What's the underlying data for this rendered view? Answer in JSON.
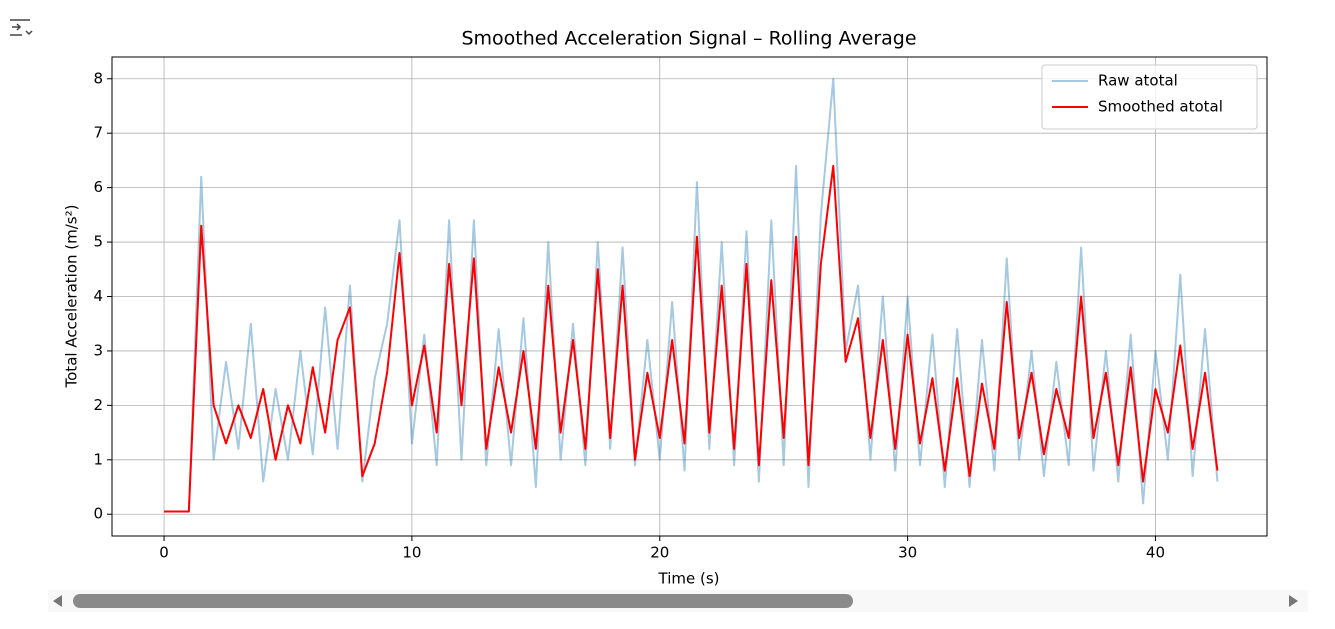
{
  "chart_data": {
    "type": "line",
    "title": "Smoothed Acceleration Signal – Rolling Average",
    "x_label": "Time (s)",
    "y_label": "Total Acceleration (m/s²)",
    "x": [
      0,
      0.5,
      1,
      1.5,
      2,
      2.5,
      3,
      3.5,
      4,
      4.5,
      5,
      5.5,
      6,
      6.5,
      7,
      7.5,
      8,
      8.5,
      9,
      9.5,
      10,
      10.5,
      11,
      11.5,
      12,
      12.5,
      13,
      13.5,
      14,
      14.5,
      15,
      15.5,
      16,
      16.5,
      17,
      17.5,
      18,
      18.5,
      19,
      19.5,
      20,
      20.5,
      21,
      21.5,
      22,
      22.5,
      23,
      23.5,
      24,
      24.5,
      25,
      25.5,
      26,
      26.5,
      27,
      27.5,
      28,
      28.5,
      29,
      29.5,
      30,
      30.5,
      31,
      31.5,
      32,
      32.5,
      33,
      33.5,
      34,
      34.5,
      35,
      35.5,
      36,
      36.5,
      37,
      37.5,
      38,
      38.5,
      39,
      39.5,
      40,
      40.5,
      41,
      41.5,
      42,
      42.5
    ],
    "series": [
      {
        "name": "Raw atotal",
        "color": "#1f77b4",
        "alpha": 0.4,
        "values": [
          0.05,
          0.05,
          0.05,
          6.2,
          1.0,
          2.8,
          1.2,
          3.5,
          0.6,
          2.3,
          1.0,
          3.0,
          1.1,
          3.8,
          1.2,
          4.2,
          0.6,
          2.5,
          3.5,
          5.4,
          1.3,
          3.3,
          0.9,
          5.4,
          1.0,
          5.4,
          0.9,
          3.4,
          0.9,
          3.6,
          0.5,
          5.0,
          1.0,
          3.5,
          0.9,
          5.0,
          1.2,
          4.9,
          0.9,
          3.2,
          1.0,
          3.9,
          0.8,
          6.1,
          1.2,
          5.0,
          0.9,
          5.2,
          0.6,
          5.4,
          0.9,
          6.4,
          0.5,
          5.5,
          8.0,
          3.0,
          4.2,
          1.0,
          4.0,
          0.8,
          4.0,
          0.9,
          3.3,
          0.5,
          3.4,
          0.5,
          3.2,
          0.8,
          4.7,
          1.0,
          3.0,
          0.7,
          2.8,
          0.9,
          4.9,
          0.8,
          3.0,
          0.6,
          3.3,
          0.2,
          3.0,
          1.0,
          4.4,
          0.7,
          3.4,
          0.6
        ]
      },
      {
        "name": "Smoothed atotal",
        "color": "#ff0000",
        "alpha": 1,
        "values": [
          0.05,
          0.05,
          0.05,
          5.3,
          2.0,
          1.3,
          2.0,
          1.4,
          2.3,
          1.0,
          2.0,
          1.3,
          2.7,
          1.5,
          3.2,
          3.8,
          0.7,
          1.3,
          2.6,
          4.8,
          2.0,
          3.1,
          1.5,
          4.6,
          2.0,
          4.7,
          1.2,
          2.7,
          1.5,
          3.0,
          1.2,
          4.2,
          1.5,
          3.2,
          1.2,
          4.5,
          1.4,
          4.2,
          1.0,
          2.6,
          1.4,
          3.2,
          1.3,
          5.1,
          1.5,
          4.2,
          1.2,
          4.6,
          0.9,
          4.3,
          1.4,
          5.1,
          0.9,
          4.6,
          6.4,
          2.8,
          3.6,
          1.4,
          3.2,
          1.2,
          3.3,
          1.3,
          2.5,
          0.8,
          2.5,
          0.7,
          2.4,
          1.2,
          3.9,
          1.4,
          2.6,
          1.1,
          2.3,
          1.4,
          4.0,
          1.4,
          2.6,
          0.9,
          2.7,
          0.6,
          2.3,
          1.5,
          3.1,
          1.2,
          2.6,
          0.8
        ]
      }
    ],
    "xlim": [
      -2.1,
      44.5
    ],
    "ylim": [
      -0.4,
      8.4
    ],
    "xticks": [
      0,
      10,
      20,
      30,
      40
    ],
    "yticks": [
      0,
      1,
      2,
      3,
      4,
      5,
      6,
      7,
      8
    ],
    "grid": true,
    "legend": "upper right"
  }
}
